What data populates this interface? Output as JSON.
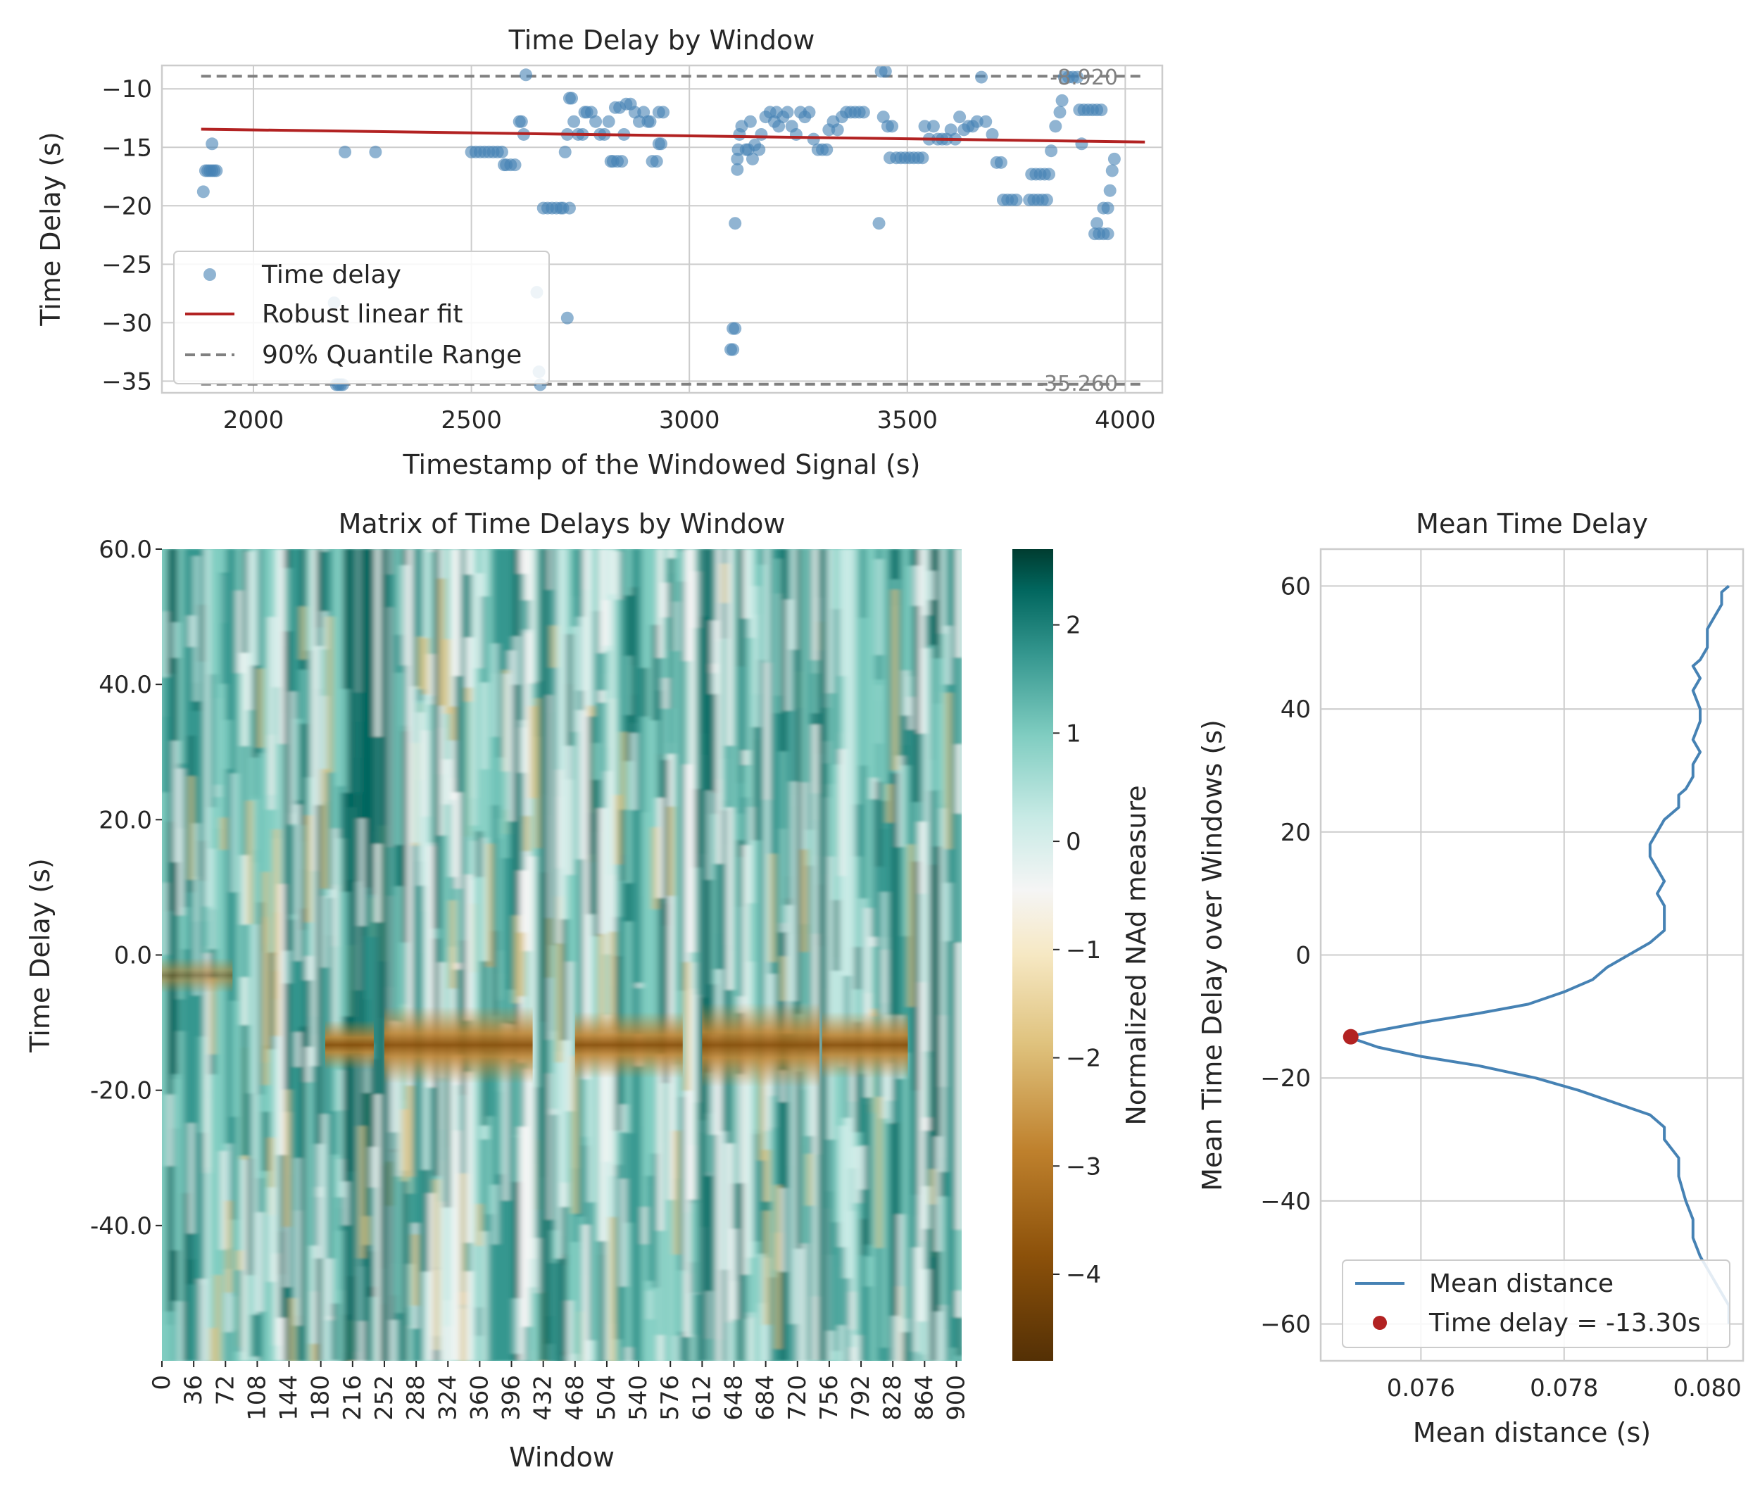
{
  "chart_data": [
    {
      "type": "scatter",
      "title": "Time Delay by Window",
      "xlabel": "Timestamp of the Windowed Signal (s)",
      "ylabel": "Time Delay (s)",
      "xlim": [
        1790,
        4085
      ],
      "ylim": [
        -36,
        -8.0
      ],
      "xticks": [
        2000,
        2500,
        3000,
        3500,
        4000
      ],
      "yticks": [
        -10,
        -15,
        -20,
        -25,
        -30,
        -35
      ],
      "ytick_labels": [
        "−10",
        "−15",
        "−20",
        "−25",
        "−30",
        "−35"
      ],
      "legend": [
        "Time delay",
        "Robust linear fit",
        "90% Quantile Range"
      ],
      "legend_position": "lower-left",
      "fit_line": {
        "x": [
          1880,
          4045
        ],
        "y": [
          -13.45,
          -14.55
        ]
      },
      "quantile_range": {
        "upper": -8.92,
        "lower": -35.26,
        "upper_label": "-8.920",
        "lower_label": "-35.260",
        "x": [
          1880,
          4045
        ]
      },
      "points": [
        [
          1885,
          -18.8
        ],
        [
          1890,
          -17.0
        ],
        [
          1895,
          -17.0
        ],
        [
          1900,
          -17.0
        ],
        [
          1905,
          -17.0
        ],
        [
          1910,
          -17.0
        ],
        [
          1915,
          -17.0
        ],
        [
          1905,
          -14.7
        ],
        [
          2185,
          -28.3
        ],
        [
          2190,
          -35.3
        ],
        [
          2195,
          -35.3
        ],
        [
          2200,
          -35.3
        ],
        [
          2205,
          -35.3
        ],
        [
          2210,
          -15.4
        ],
        [
          2280,
          -15.4
        ],
        [
          2500,
          -15.4
        ],
        [
          2510,
          -15.4
        ],
        [
          2520,
          -15.4
        ],
        [
          2530,
          -15.4
        ],
        [
          2540,
          -15.4
        ],
        [
          2550,
          -15.4
        ],
        [
          2560,
          -15.4
        ],
        [
          2570,
          -15.4
        ],
        [
          2575,
          -16.5
        ],
        [
          2580,
          -16.5
        ],
        [
          2590,
          -16.5
        ],
        [
          2600,
          -16.5
        ],
        [
          2610,
          -12.8
        ],
        [
          2615,
          -12.8
        ],
        [
          2620,
          -13.9
        ],
        [
          2625,
          -8.8
        ],
        [
          2650,
          -27.4
        ],
        [
          2655,
          -34.2
        ],
        [
          2658,
          -35.3
        ],
        [
          2665,
          -20.2
        ],
        [
          2675,
          -20.2
        ],
        [
          2685,
          -20.2
        ],
        [
          2695,
          -20.2
        ],
        [
          2705,
          -20.2
        ],
        [
          2710,
          -20.2
        ],
        [
          2720,
          -29.6
        ],
        [
          2725,
          -20.2
        ],
        [
          2715,
          -15.4
        ],
        [
          2720,
          -13.9
        ],
        [
          2725,
          -10.8
        ],
        [
          2730,
          -10.8
        ],
        [
          2735,
          -12.8
        ],
        [
          2745,
          -13.9
        ],
        [
          2755,
          -13.9
        ],
        [
          2760,
          -12.0
        ],
        [
          2765,
          -12.0
        ],
        [
          2775,
          -12.0
        ],
        [
          2785,
          -12.8
        ],
        [
          2795,
          -13.9
        ],
        [
          2805,
          -13.9
        ],
        [
          2815,
          -12.8
        ],
        [
          2820,
          -16.2
        ],
        [
          2825,
          -16.2
        ],
        [
          2835,
          -16.2
        ],
        [
          2845,
          -16.2
        ],
        [
          2830,
          -11.6
        ],
        [
          2840,
          -11.6
        ],
        [
          2850,
          -13.9
        ],
        [
          2855,
          -11.3
        ],
        [
          2865,
          -11.3
        ],
        [
          2875,
          -12.0
        ],
        [
          2885,
          -12.8
        ],
        [
          2895,
          -12.0
        ],
        [
          2905,
          -12.8
        ],
        [
          2910,
          -12.8
        ],
        [
          2915,
          -16.2
        ],
        [
          2925,
          -16.2
        ],
        [
          2930,
          -14.7
        ],
        [
          2935,
          -14.7
        ],
        [
          2930,
          -12.0
        ],
        [
          2940,
          -12.0
        ],
        [
          3100,
          -30.5
        ],
        [
          3105,
          -30.5
        ],
        [
          3095,
          -32.3
        ],
        [
          3100,
          -32.3
        ],
        [
          3105,
          -21.5
        ],
        [
          3110,
          -16.0
        ],
        [
          3112,
          -15.2
        ],
        [
          3110,
          -16.9
        ],
        [
          3115,
          -13.9
        ],
        [
          3120,
          -13.2
        ],
        [
          3130,
          -15.2
        ],
        [
          3135,
          -15.2
        ],
        [
          3140,
          -12.8
        ],
        [
          3145,
          -16.0
        ],
        [
          3150,
          -14.8
        ],
        [
          3160,
          -15.2
        ],
        [
          3165,
          -13.9
        ],
        [
          3175,
          -12.4
        ],
        [
          3185,
          -12.0
        ],
        [
          3195,
          -12.8
        ],
        [
          3200,
          -12.0
        ],
        [
          3205,
          -13.2
        ],
        [
          3215,
          -12.4
        ],
        [
          3225,
          -12.0
        ],
        [
          3235,
          -13.2
        ],
        [
          3245,
          -13.9
        ],
        [
          3255,
          -12.0
        ],
        [
          3265,
          -12.4
        ],
        [
          3275,
          -12.0
        ],
        [
          3285,
          -14.3
        ],
        [
          3295,
          -15.2
        ],
        [
          3305,
          -15.2
        ],
        [
          3315,
          -15.2
        ],
        [
          3320,
          -13.5
        ],
        [
          3330,
          -12.8
        ],
        [
          3340,
          -13.5
        ],
        [
          3350,
          -12.4
        ],
        [
          3360,
          -12.0
        ],
        [
          3370,
          -12.0
        ],
        [
          3380,
          -12.0
        ],
        [
          3390,
          -12.0
        ],
        [
          3400,
          -12.0
        ],
        [
          3435,
          -21.5
        ],
        [
          3440,
          -8.5
        ],
        [
          3450,
          -8.5
        ],
        [
          3445,
          -12.4
        ],
        [
          3455,
          -13.2
        ],
        [
          3460,
          -15.9
        ],
        [
          3465,
          -13.2
        ],
        [
          3475,
          -15.9
        ],
        [
          3485,
          -15.9
        ],
        [
          3495,
          -15.9
        ],
        [
          3505,
          -15.9
        ],
        [
          3515,
          -15.9
        ],
        [
          3525,
          -15.9
        ],
        [
          3535,
          -15.9
        ],
        [
          3540,
          -13.2
        ],
        [
          3550,
          -14.3
        ],
        [
          3560,
          -13.2
        ],
        [
          3570,
          -14.3
        ],
        [
          3580,
          -14.3
        ],
        [
          3590,
          -14.3
        ],
        [
          3600,
          -13.5
        ],
        [
          3610,
          -14.3
        ],
        [
          3620,
          -12.4
        ],
        [
          3630,
          -13.5
        ],
        [
          3640,
          -13.2
        ],
        [
          3650,
          -13.2
        ],
        [
          3660,
          -12.8
        ],
        [
          3670,
          -9.0
        ],
        [
          3680,
          -12.8
        ],
        [
          3695,
          -13.9
        ],
        [
          3705,
          -16.3
        ],
        [
          3715,
          -16.3
        ],
        [
          3720,
          -19.5
        ],
        [
          3730,
          -19.5
        ],
        [
          3740,
          -19.5
        ],
        [
          3750,
          -19.5
        ],
        [
          3780,
          -19.5
        ],
        [
          3790,
          -19.5
        ],
        [
          3800,
          -19.5
        ],
        [
          3810,
          -19.5
        ],
        [
          3820,
          -19.5
        ],
        [
          3785,
          -17.3
        ],
        [
          3795,
          -17.3
        ],
        [
          3805,
          -17.3
        ],
        [
          3815,
          -17.3
        ],
        [
          3825,
          -17.3
        ],
        [
          3830,
          -15.3
        ],
        [
          3840,
          -13.2
        ],
        [
          3850,
          -12.0
        ],
        [
          3855,
          -11.0
        ],
        [
          3860,
          -9.0
        ],
        [
          3870,
          -9.0
        ],
        [
          3880,
          -9.0
        ],
        [
          3890,
          -9.0
        ],
        [
          3895,
          -11.8
        ],
        [
          3905,
          -11.8
        ],
        [
          3915,
          -11.8
        ],
        [
          3925,
          -11.8
        ],
        [
          3935,
          -11.8
        ],
        [
          3945,
          -11.8
        ],
        [
          3900,
          -14.7
        ],
        [
          3930,
          -22.4
        ],
        [
          3940,
          -22.4
        ],
        [
          3950,
          -22.4
        ],
        [
          3960,
          -22.4
        ],
        [
          3935,
          -21.5
        ],
        [
          3950,
          -20.2
        ],
        [
          3960,
          -20.2
        ],
        [
          3965,
          -18.7
        ],
        [
          3970,
          -17.0
        ],
        [
          3975,
          -16.0
        ]
      ]
    },
    {
      "type": "heatmap",
      "title": "Matrix of Time Delays by Window",
      "xlabel": "Window",
      "ylabel": "Time Delay (s)",
      "xlim": [
        0,
        906
      ],
      "ylim": [
        -60,
        60
      ],
      "xticks": [
        0,
        36,
        72,
        108,
        144,
        180,
        216,
        252,
        288,
        324,
        360,
        396,
        432,
        468,
        504,
        540,
        576,
        612,
        648,
        684,
        720,
        756,
        792,
        828,
        864,
        900
      ],
      "yticks": [
        60,
        40,
        20,
        0,
        -20,
        -40
      ],
      "ytick_labels": [
        "60.0",
        "40.0",
        "20.0",
        "0.0",
        "-20.0",
        "-40.0"
      ],
      "colorbar": {
        "label": "Normalized NAd measure",
        "range": [
          -4.8,
          2.7
        ],
        "ticks": [
          2,
          1,
          0,
          -1,
          -2,
          -3,
          -4
        ],
        "tick_labels": [
          "2",
          "1",
          "0",
          "−1",
          "−2",
          "−3",
          "−4"
        ],
        "colormap": "BrBG"
      },
      "band_center": -13.3,
      "notable_columns": [
        216,
        252,
        432,
        612,
        748
      ]
    },
    {
      "type": "line",
      "title": "Mean Time Delay",
      "xlabel": "Mean distance (s)",
      "ylabel": "Mean Time Delay over Windows (s)",
      "xlim": [
        0.0746,
        0.0805
      ],
      "ylim": [
        -66,
        66
      ],
      "xticks": [
        0.076,
        0.078,
        0.08
      ],
      "xtick_labels": [
        "0.076",
        "0.078",
        "0.080"
      ],
      "yticks": [
        60,
        40,
        20,
        0,
        -20,
        -40,
        -60
      ],
      "ytick_labels": [
        "60",
        "40",
        "20",
        "0",
        "−20",
        "−40",
        "−60"
      ],
      "legend": [
        "Mean distance",
        "Time delay = -13.30s"
      ],
      "legend_position": "lower-right",
      "minimum": {
        "x": 0.07502,
        "y": -13.3
      },
      "series": [
        {
          "name": "Mean distance",
          "points": [
            [
              0.0803,
              60
            ],
            [
              0.0802,
              59
            ],
            [
              0.0802,
              57
            ],
            [
              0.0801,
              55
            ],
            [
              0.08,
              53
            ],
            [
              0.08,
              50
            ],
            [
              0.0799,
              48
            ],
            [
              0.0798,
              47
            ],
            [
              0.0799,
              45
            ],
            [
              0.0798,
              43
            ],
            [
              0.0799,
              40
            ],
            [
              0.0799,
              38
            ],
            [
              0.0798,
              35
            ],
            [
              0.0799,
              33
            ],
            [
              0.0798,
              31
            ],
            [
              0.0798,
              29
            ],
            [
              0.0797,
              27
            ],
            [
              0.0796,
              26
            ],
            [
              0.0796,
              24
            ],
            [
              0.0794,
              22
            ],
            [
              0.0793,
              20
            ],
            [
              0.0792,
              18
            ],
            [
              0.0792,
              16
            ],
            [
              0.0793,
              14
            ],
            [
              0.0794,
              12
            ],
            [
              0.0793,
              10
            ],
            [
              0.0794,
              8
            ],
            [
              0.0794,
              6
            ],
            [
              0.0794,
              4
            ],
            [
              0.0792,
              2
            ],
            [
              0.0789,
              0
            ],
            [
              0.0786,
              -2
            ],
            [
              0.0784,
              -4
            ],
            [
              0.078,
              -6
            ],
            [
              0.0775,
              -8
            ],
            [
              0.0768,
              -9.5
            ],
            [
              0.076,
              -11
            ],
            [
              0.0754,
              -12.3
            ],
            [
              0.0751,
              -13.0
            ],
            [
              0.07502,
              -13.3
            ],
            [
              0.0751,
              -13.8
            ],
            [
              0.0754,
              -15
            ],
            [
              0.076,
              -16.5
            ],
            [
              0.0768,
              -18
            ],
            [
              0.0776,
              -20
            ],
            [
              0.0782,
              -22
            ],
            [
              0.0787,
              -24
            ],
            [
              0.0792,
              -26
            ],
            [
              0.0794,
              -28
            ],
            [
              0.0794,
              -30
            ],
            [
              0.0796,
              -33
            ],
            [
              0.0796,
              -36
            ],
            [
              0.0797,
              -40
            ],
            [
              0.0798,
              -43
            ],
            [
              0.0798,
              -46
            ],
            [
              0.0799,
              -49
            ],
            [
              0.08,
              -51
            ],
            [
              0.0801,
              -53
            ],
            [
              0.0802,
              -55
            ],
            [
              0.0803,
              -57
            ],
            [
              0.0803,
              -59
            ],
            [
              0.0803,
              -60
            ]
          ]
        }
      ]
    }
  ]
}
